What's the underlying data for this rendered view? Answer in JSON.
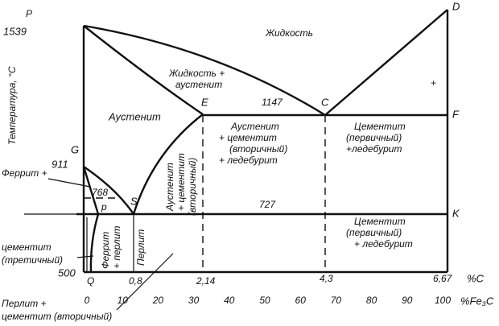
{
  "points": {
    "P": "P",
    "D": "D",
    "E": "E",
    "C": "C",
    "F": "F",
    "G": "G",
    "S": "S",
    "p": "p",
    "K": "K",
    "Q": "Q"
  },
  "temperatures": {
    "t1539": "1539",
    "t1147": "1147",
    "t911": "911",
    "t768": "768",
    "t727": "727",
    "t500": "500"
  },
  "y_axis_label": "Температура, °С",
  "carbon_axis": {
    "ticks": [
      "0,8",
      "2,14",
      "4,3",
      "6,67"
    ],
    "unit": "%C"
  },
  "fe3c_axis": {
    "ticks": [
      "0",
      "10",
      "20",
      "30",
      "40",
      "50",
      "60",
      "70",
      "80",
      "90",
      "100"
    ],
    "unit": "%Fe₃C"
  },
  "regions": {
    "liquid": "Жидкость",
    "liquid_austenite": [
      "Жидкость +",
      "аустенит"
    ],
    "austenite": "Аустенит",
    "austenite_cementite_ledeburite": [
      "Аустенит",
      "+ цементит",
      "(вторичный)",
      "+ ледебурит"
    ],
    "cementite_ledeburite_upper": [
      "Цементит",
      "(первичный)",
      "+ледебурит"
    ],
    "cementite_ledeburite_lower": [
      "Цементит",
      "(первичный)",
      "+ ледебурит"
    ],
    "austenite_cementite_vertical": [
      "Аустенит",
      "+ цементит",
      "(вторичный)"
    ],
    "ferrite_pearlite_vertical": [
      "Феррит",
      "+ перлит"
    ],
    "pearlite_vertical": "Перлит",
    "ferrite_plus": "Феррит +",
    "cementite_tertiary": [
      "цементит",
      "(третичный)"
    ],
    "pearlite_secondary": [
      "Перлит +",
      "цементит (вторичный)"
    ],
    "plus": "+"
  }
}
